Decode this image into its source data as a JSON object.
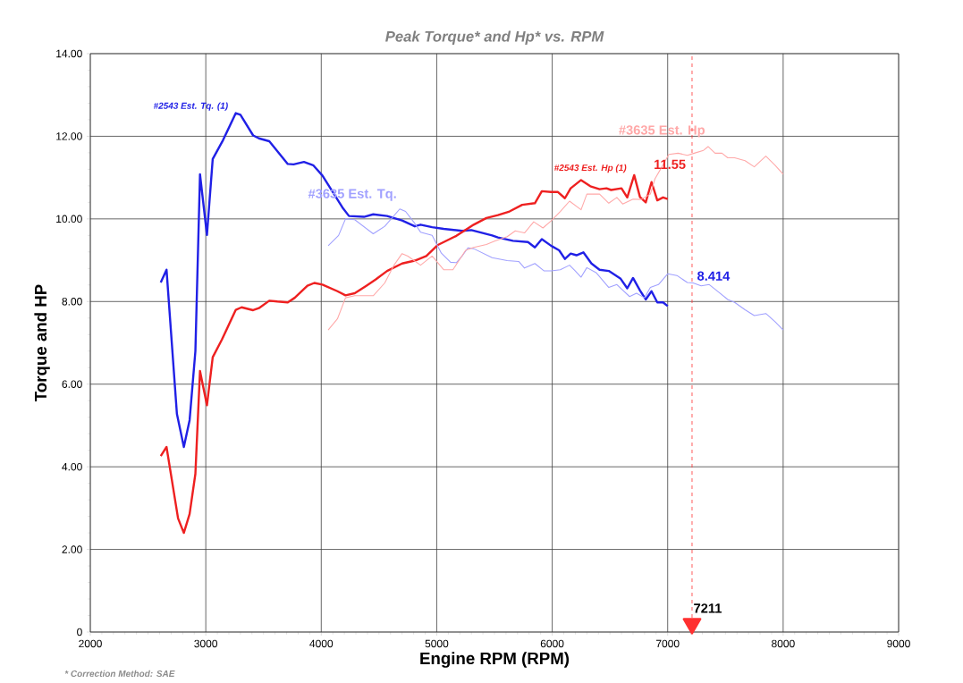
{
  "chart_data": {
    "type": "line",
    "title": "Peak Torque* and Hp* vs. RPM",
    "xlabel": "Engine RPM (RPM)",
    "ylabel": "Torque and HP",
    "xlim": [
      2000,
      9000
    ],
    "ylim": [
      0,
      14
    ],
    "xticks": [
      2000,
      3000,
      4000,
      5000,
      6000,
      7000,
      8000,
      9000
    ],
    "yticks": [
      0,
      {
        "value": 2,
        "label": "2.00"
      },
      {
        "value": 4,
        "label": "4.00"
      },
      {
        "value": 6,
        "label": "6.00"
      },
      {
        "value": 8,
        "label": "8.00"
      },
      {
        "value": 10,
        "label": "10.00"
      },
      {
        "value": 12,
        "label": "12.00"
      },
      {
        "value": 14,
        "label": "14.00"
      }
    ],
    "grid": true,
    "series": [
      {
        "name": "#2543 Est. Tq. (1)",
        "color": "#2020e6",
        "x": [
          2610,
          2660,
          2750,
          2810,
          2860,
          2910,
          2950,
          3010,
          3060,
          3150,
          3260,
          3300,
          3410,
          3460,
          3550,
          3710,
          3760,
          3850,
          3930,
          4010,
          4190,
          4240,
          4370,
          4450,
          4570,
          4700,
          4810,
          4860,
          4960,
          5060,
          5220,
          5300,
          5480,
          5530,
          5660,
          5790,
          5850,
          5910,
          5990,
          6060,
          6110,
          6160,
          6210,
          6270,
          6340,
          6410,
          6490,
          6590,
          6650,
          6700,
          6760,
          6810,
          6860,
          6910,
          6960,
          7000
        ],
        "values": [
          8.46,
          8.77,
          5.28,
          4.48,
          5.13,
          6.8,
          11.08,
          9.61,
          11.45,
          11.91,
          12.56,
          12.52,
          12.02,
          11.95,
          11.88,
          11.33,
          11.32,
          11.38,
          11.3,
          11.05,
          10.25,
          10.07,
          10.05,
          10.11,
          10.07,
          9.96,
          9.82,
          9.86,
          9.8,
          9.76,
          9.71,
          9.73,
          9.6,
          9.55,
          9.47,
          9.44,
          9.31,
          9.51,
          9.35,
          9.24,
          9.03,
          9.16,
          9.12,
          9.19,
          8.92,
          8.77,
          8.74,
          8.56,
          8.32,
          8.57,
          8.27,
          8.05,
          8.25,
          7.98,
          7.98,
          7.89
        ]
      },
      {
        "name": "#2543 Est. Hp (1)",
        "color": "#ee2020",
        "x": [
          2610,
          2660,
          2760,
          2810,
          2860,
          2910,
          2950,
          3010,
          3060,
          3140,
          3260,
          3310,
          3410,
          3460,
          3550,
          3620,
          3710,
          3770,
          3880,
          3940,
          4010,
          4140,
          4210,
          4290,
          4390,
          4470,
          4570,
          4700,
          4810,
          4910,
          5010,
          5170,
          5320,
          5430,
          5530,
          5630,
          5740,
          5850,
          5910,
          5990,
          6050,
          6110,
          6160,
          6250,
          6330,
          6410,
          6470,
          6510,
          6600,
          6650,
          6710,
          6760,
          6810,
          6860,
          6910,
          6960,
          7000
        ],
        "values": [
          4.26,
          4.48,
          2.75,
          2.4,
          2.86,
          3.83,
          6.32,
          5.49,
          6.65,
          7.08,
          7.8,
          7.86,
          7.79,
          7.84,
          8.02,
          8.0,
          7.98,
          8.09,
          8.38,
          8.45,
          8.41,
          8.25,
          8.15,
          8.2,
          8.38,
          8.53,
          8.74,
          8.92,
          8.99,
          9.1,
          9.37,
          9.59,
          9.86,
          10.02,
          10.09,
          10.18,
          10.34,
          10.38,
          10.67,
          10.65,
          10.65,
          10.5,
          10.74,
          10.94,
          10.79,
          10.72,
          10.74,
          10.7,
          10.74,
          10.52,
          11.06,
          10.53,
          10.4,
          10.89,
          10.45,
          10.52,
          10.48
        ]
      },
      {
        "name": "#3635 Est. Tq.",
        "color": "#a0a0ff",
        "x": [
          4060,
          4150,
          4210,
          4290,
          4450,
          4550,
          4680,
          4730,
          4810,
          4860,
          4960,
          5040,
          5120,
          5170,
          5220,
          5270,
          5320,
          5480,
          5610,
          5710,
          5760,
          5850,
          5930,
          5990,
          6070,
          6150,
          6200,
          6250,
          6300,
          6380,
          6490,
          6560,
          6670,
          6730,
          6800,
          6850,
          6920,
          7000,
          7080,
          7170,
          7220,
          7290,
          7360,
          7440,
          7520,
          7580,
          7670,
          7750,
          7850,
          7930,
          8000
        ],
        "values": [
          9.35,
          9.6,
          10.0,
          9.98,
          9.64,
          9.82,
          10.24,
          10.18,
          9.89,
          9.68,
          9.6,
          9.17,
          8.95,
          8.94,
          9.1,
          9.3,
          9.28,
          9.06,
          8.99,
          8.97,
          8.81,
          8.92,
          8.74,
          8.74,
          8.77,
          8.88,
          8.74,
          8.59,
          8.82,
          8.7,
          8.34,
          8.41,
          8.12,
          8.2,
          8.09,
          8.34,
          8.41,
          8.67,
          8.63,
          8.46,
          8.45,
          8.38,
          8.41,
          8.23,
          8.05,
          7.98,
          7.8,
          7.66,
          7.71,
          7.51,
          7.31
        ]
      },
      {
        "name": "#3635 Est. Hp",
        "color": "#ffa8a8",
        "x": [
          4060,
          4140,
          4210,
          4290,
          4450,
          4550,
          4630,
          4700,
          4750,
          4860,
          4960,
          5060,
          5140,
          5250,
          5320,
          5430,
          5500,
          5610,
          5680,
          5760,
          5840,
          5920,
          5990,
          6070,
          6150,
          6250,
          6300,
          6410,
          6490,
          6560,
          6610,
          6700,
          6770,
          6850,
          6890,
          6950,
          7010,
          7090,
          7170,
          7230,
          7310,
          7350,
          7410,
          7470,
          7520,
          7580,
          7670,
          7750,
          7850,
          7930,
          8000
        ],
        "values": [
          7.31,
          7.58,
          8.09,
          8.14,
          8.14,
          8.45,
          8.88,
          9.16,
          9.1,
          8.88,
          9.1,
          8.77,
          8.77,
          9.24,
          9.31,
          9.38,
          9.46,
          9.57,
          9.71,
          9.66,
          9.93,
          9.78,
          9.95,
          10.18,
          10.43,
          10.22,
          10.6,
          10.6,
          10.38,
          10.52,
          10.36,
          10.48,
          10.47,
          10.6,
          10.97,
          11.26,
          11.56,
          11.59,
          11.54,
          11.59,
          11.66,
          11.75,
          11.59,
          11.59,
          11.48,
          11.48,
          11.41,
          11.26,
          11.52,
          11.3,
          11.08
        ]
      },
      {
        "type": "scatter",
        "color": "#ff3030",
        "marker": "triangle",
        "x": [
          7211
        ],
        "values": [
          0.2
        ]
      }
    ],
    "ref_lines": [
      {
        "axis": "x",
        "value": 7211,
        "label": "7211",
        "color": "#ff3030",
        "line_style": "dashed"
      }
    ],
    "annotations": [
      {
        "text": "11.55",
        "x": 7211,
        "y": 11.55
      },
      {
        "text": "8.414",
        "x": 7211,
        "y": 8.414
      },
      "* Correction Method: SAE"
    ]
  }
}
